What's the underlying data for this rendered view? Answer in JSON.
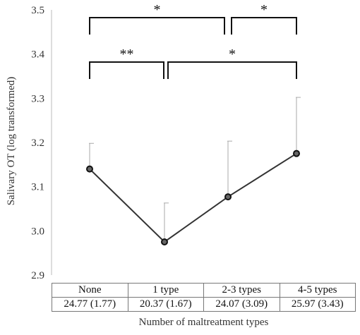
{
  "chart_data": {
    "type": "line",
    "ylabel": "Salivary OT  (log transformed)",
    "xlabel": "Number of maltreatment types",
    "ylim": [
      2.9,
      3.5
    ],
    "yticks": [
      "2.9",
      "3.0",
      "3.1",
      "3.2",
      "3.3",
      "3.4",
      "3.5"
    ],
    "grid": false,
    "categories": [
      "None",
      "1 type",
      "2-3 types",
      "4-5 types"
    ],
    "values": [
      3.14,
      2.975,
      3.077,
      3.175
    ],
    "error_upper": [
      3.198,
      3.063,
      3.203,
      3.302
    ],
    "table_values": [
      "24.77 (1.77)",
      "20.37 (1.67)",
      "24.07 (3.09)",
      "25.97 (3.43)"
    ],
    "significance": [
      {
        "from": "None",
        "to": "1 type",
        "label": "**"
      },
      {
        "from": "1 type",
        "to": "4-5 types",
        "label": "*"
      },
      {
        "from": "None",
        "to": "2-3 types",
        "label": "*"
      },
      {
        "from": "2-3 types",
        "to": "4-5 types",
        "label": "*"
      }
    ]
  }
}
